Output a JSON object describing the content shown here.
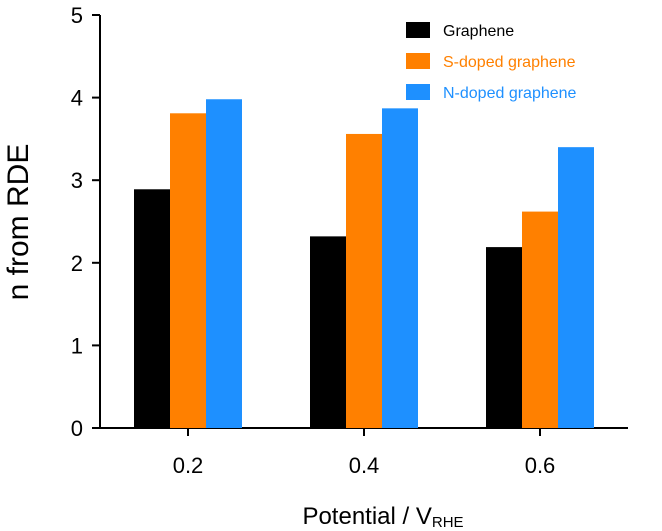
{
  "chart_data": {
    "type": "bar",
    "categories": [
      "0.2",
      "0.4",
      "0.6"
    ],
    "series": [
      {
        "name": "Graphene",
        "values": [
          2.89,
          2.32,
          2.19
        ],
        "color": "#000000",
        "label_color": "#000000"
      },
      {
        "name": "S-doped graphene",
        "values": [
          3.81,
          3.56,
          2.62
        ],
        "color": "#ff8000",
        "label_color": "#ff8000"
      },
      {
        "name": "N-doped graphene",
        "values": [
          3.98,
          3.87,
          3.4
        ],
        "color": "#1e90ff",
        "label_color": "#1e90ff"
      }
    ],
    "xlabel_main": "Potential / V",
    "xlabel_sub": "RHE",
    "ylabel": "n from RDE",
    "ylim": [
      0,
      5
    ],
    "yticks": [
      "0",
      "1",
      "2",
      "3",
      "4",
      "5"
    ],
    "grid": false,
    "legend_position": "top-right"
  }
}
